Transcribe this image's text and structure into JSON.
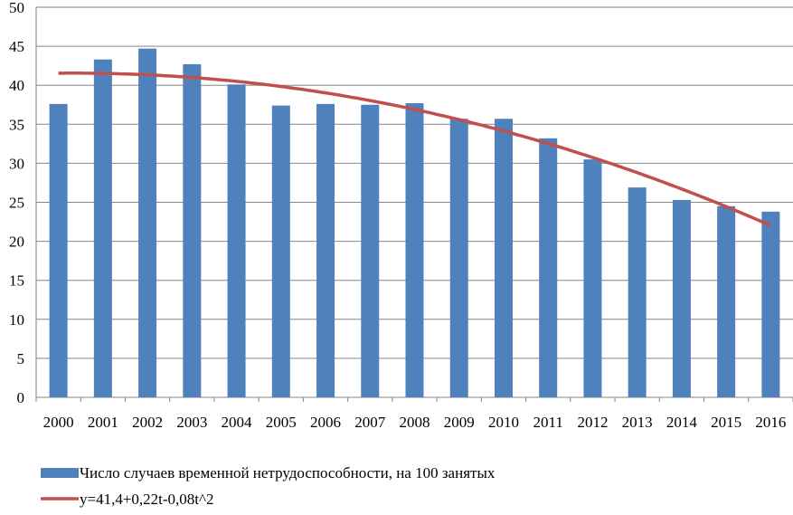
{
  "chart_data": {
    "type": "bar",
    "title": "",
    "xlabel": "",
    "ylabel": "",
    "ylim": [
      0,
      50
    ],
    "yticks": [
      0,
      5,
      10,
      15,
      20,
      25,
      30,
      35,
      40,
      45,
      50
    ],
    "grid": true,
    "legend_position": "bottom-left",
    "categories": [
      "2000",
      "2001",
      "2002",
      "2003",
      "2004",
      "2005",
      "2006",
      "2007",
      "2008",
      "2009",
      "2010",
      "2011",
      "2012",
      "2013",
      "2014",
      "2015",
      "2016"
    ],
    "series": [
      {
        "name": "Число случаев временной нетрудоспособности, на 100 занятых",
        "type": "bar",
        "color": "#4F81BD",
        "values": [
          37.6,
          43.3,
          44.7,
          42.7,
          40.1,
          37.4,
          37.6,
          37.5,
          37.7,
          35.7,
          35.7,
          33.2,
          30.5,
          26.9,
          25.3,
          24.5,
          23.8
        ]
      },
      {
        "name": "y=41,4+0,22t-0,08t^2",
        "type": "line",
        "color": "#C0504D",
        "formula": {
          "a": 41.4,
          "b": 0.22,
          "c": -0.08
        }
      }
    ]
  }
}
